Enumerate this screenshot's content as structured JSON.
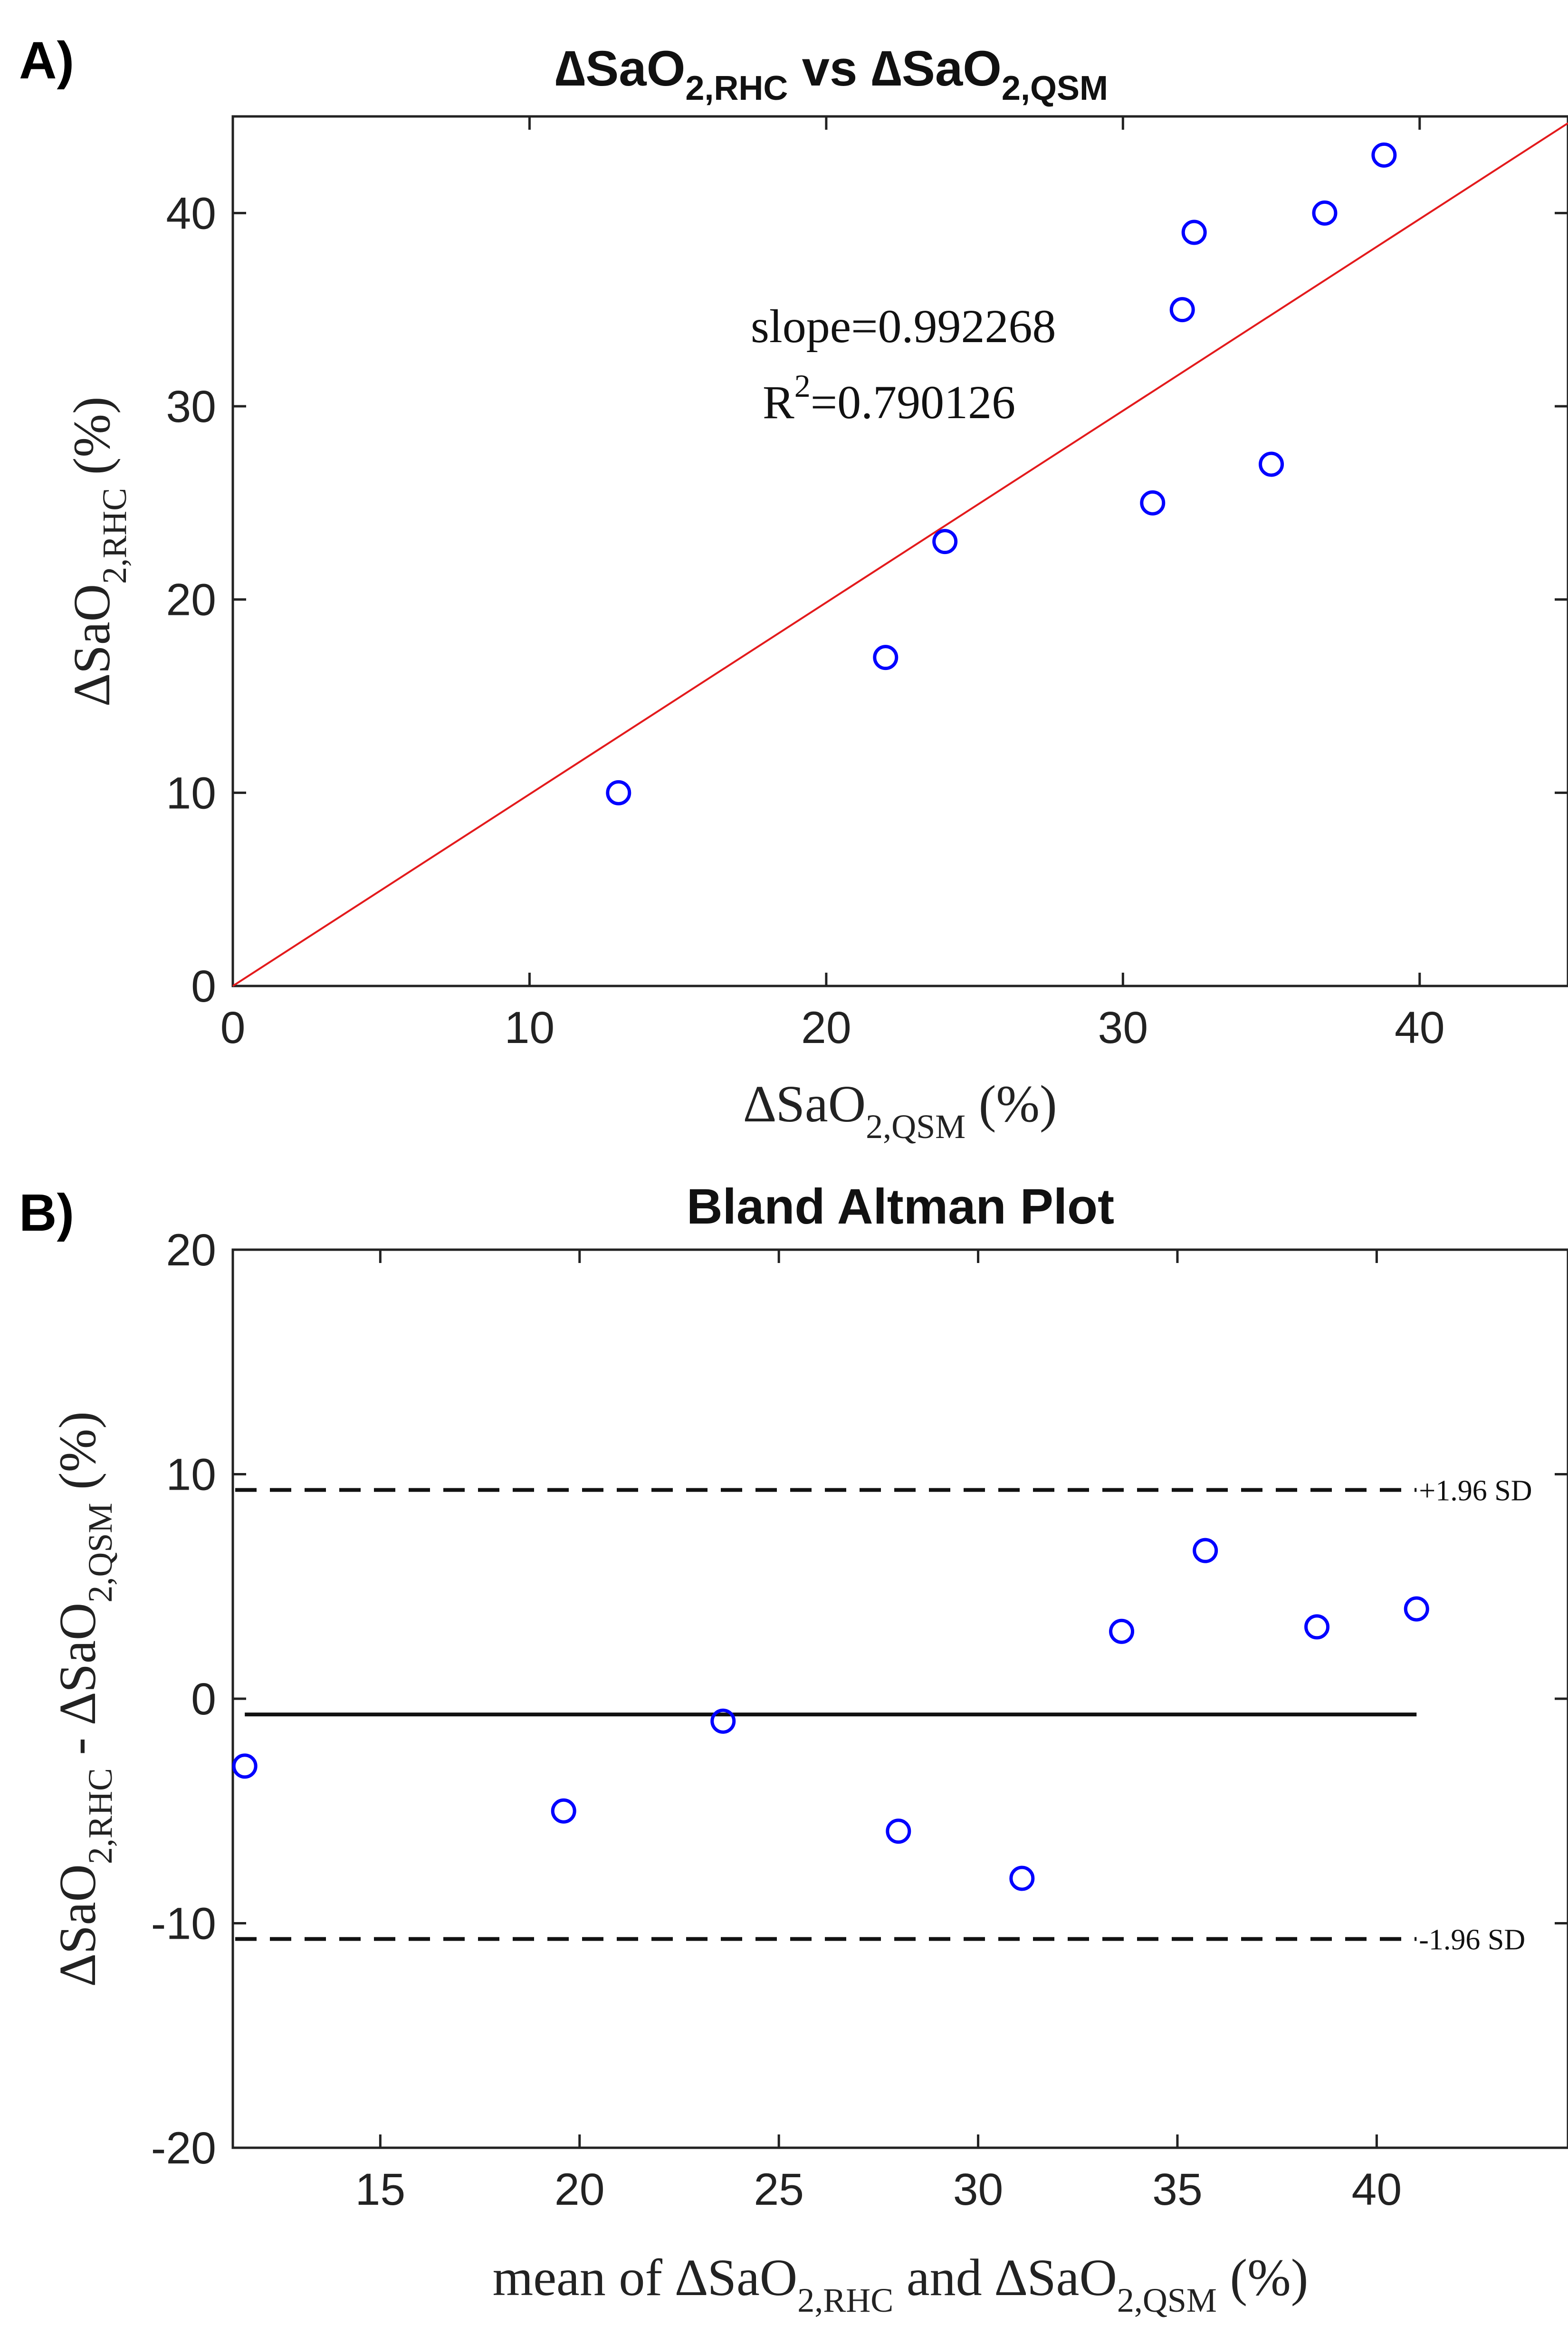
{
  "chart_data": [
    {
      "panel": "A)",
      "type": "scatter",
      "title": {
        "delta": "∆",
        "main": "SaO",
        "sub1": "2,RHC",
        "mid": " vs ",
        "delta2": "∆",
        "main2": "SaO",
        "sub2": "2,QSM"
      },
      "xlabel": {
        "delta": "∆",
        "main": "SaO",
        "sub": "2,QSM",
        "unit": " (%)"
      },
      "ylabel": {
        "delta": "∆",
        "main": "SaO",
        "sub": "2,RHC",
        "unit": " (%)"
      },
      "xlim": [
        0,
        45
      ],
      "ylim": [
        0,
        45
      ],
      "xticks": [
        0,
        10,
        20,
        30,
        40
      ],
      "yticks": [
        0,
        10,
        20,
        30,
        40
      ],
      "x": [
        13,
        22,
        24,
        31,
        32,
        32.4,
        35,
        36.8,
        38.8
      ],
      "y": [
        10,
        17,
        23,
        25,
        35,
        39,
        27,
        40,
        43
      ],
      "marker_color": "#0000ff",
      "fit": {
        "slope": 0.992268,
        "line_color": "#e31a1c"
      },
      "annotation": {
        "slope_text": "slope=0.992268",
        "r_prefix": "R",
        "r_sup": "2",
        "r_value": "=0.790126"
      },
      "grid": false
    },
    {
      "panel": "B)",
      "type": "scatter",
      "title": "Bland Altman Plot",
      "xlabel": {
        "prefix": "mean of ",
        "delta": "∆",
        "main": "SaO",
        "sub1": "2,RHC",
        "mid": " and ",
        "delta2": "∆",
        "main2": "SaO",
        "sub2": "2,QSM",
        "unit": " (%)"
      },
      "ylabel": {
        "delta": "∆",
        "main": "SaO",
        "sub1": "2,RHC",
        "mid": " - ",
        "delta2": "∆",
        "main2": "SaO",
        "sub2": "2,QSM",
        "unit": " (%)"
      },
      "xlim": [
        11.3,
        44.8
      ],
      "ylim": [
        -20,
        20
      ],
      "xticks": [
        15,
        20,
        25,
        30,
        35,
        40
      ],
      "yticks": [
        -20,
        -10,
        0,
        10,
        20
      ],
      "x": [
        11.6,
        19.6,
        23.6,
        28,
        31.1,
        33.6,
        35.7,
        38.5,
        41
      ],
      "y": [
        -3,
        -5,
        -1,
        -5.9,
        -8,
        3,
        6.6,
        3.2,
        4
      ],
      "marker_color": "#0000ff",
      "mean_line": {
        "value": -0.7,
        "x_range": [
          11.6,
          41
        ]
      },
      "upper_loa": {
        "value": 9.3,
        "label": "+1.96 SD"
      },
      "lower_loa": {
        "value": -10.7,
        "label": "-1.96 SD"
      },
      "grid": false
    }
  ]
}
